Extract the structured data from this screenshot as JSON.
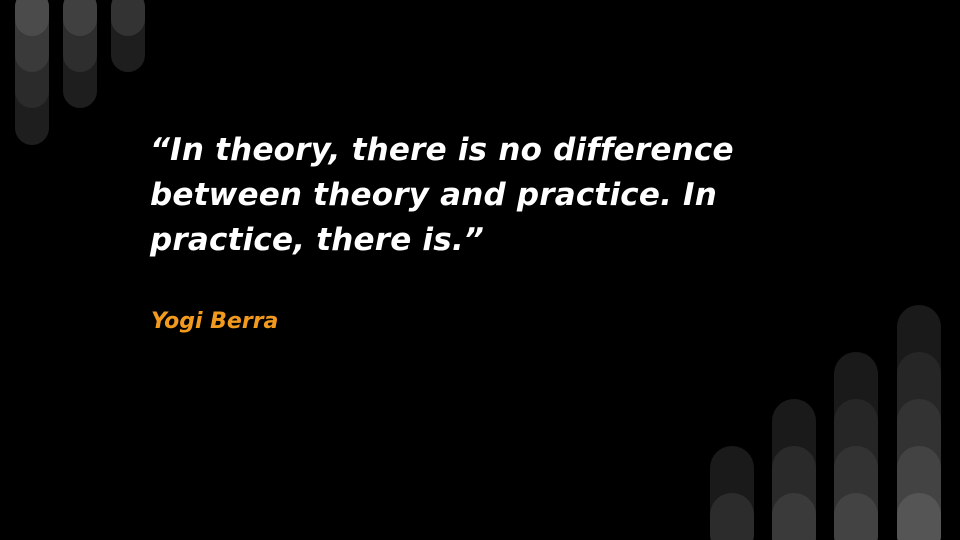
{
  "slide": {
    "quote": "“In theory, there is no difference between theory and practice. In practice, there is.”",
    "author": "Yogi Berra"
  },
  "colors": {
    "background": "#000000",
    "quote_text": "#ffffff",
    "author_text": "#f29a1e"
  }
}
